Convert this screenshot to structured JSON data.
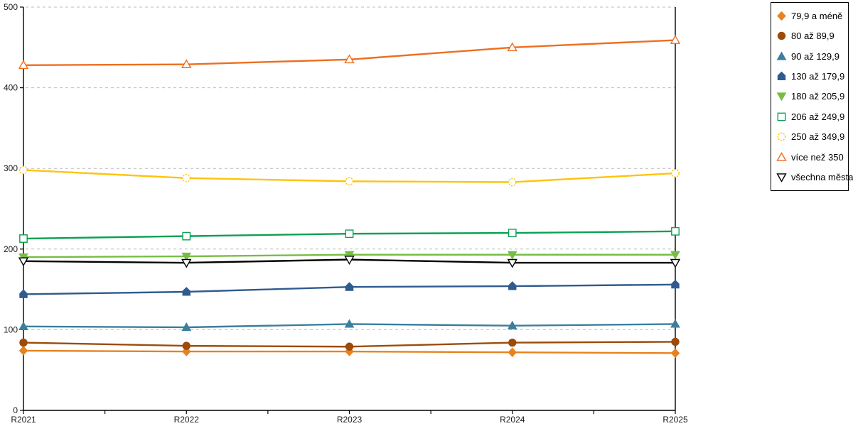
{
  "chart_data": {
    "type": "line",
    "title": "",
    "xlabel": "",
    "ylabel": "",
    "categories": [
      "R2021",
      "R2022",
      "R2023",
      "R2024",
      "R2025"
    ],
    "ylim": [
      0,
      500
    ],
    "yticks": [
      0,
      100,
      200,
      300,
      400,
      500
    ],
    "grid": "horizontal-dashed",
    "legend_position": "top-right-outside",
    "series": [
      {
        "name": "79,9 a méně",
        "marker": "diamond",
        "filled": true,
        "color": "#E8821E",
        "values": [
          74,
          73,
          73,
          72,
          71
        ]
      },
      {
        "name": "80 až 89,9",
        "marker": "circle",
        "filled": true,
        "color": "#9C4B0A",
        "values": [
          84,
          80,
          79,
          84,
          85
        ]
      },
      {
        "name": "90 až 129,9",
        "marker": "triangle-up",
        "filled": true,
        "color": "#3C7E9C",
        "values": [
          104,
          103,
          107,
          105,
          107
        ]
      },
      {
        "name": "130 až 179,9",
        "marker": "pentagon",
        "filled": true,
        "color": "#2F5B8F",
        "values": [
          144,
          147,
          153,
          154,
          156
        ]
      },
      {
        "name": "180 až 205,9",
        "marker": "triangle-down",
        "filled": true,
        "color": "#76BE43",
        "values": [
          190,
          191,
          193,
          193,
          193
        ]
      },
      {
        "name": "206 až 249,9",
        "marker": "square",
        "filled": false,
        "color": "#0AA153",
        "values": [
          213,
          216,
          219,
          220,
          222
        ]
      },
      {
        "name": "250 až 349,9",
        "marker": "circle-dashed",
        "filled": false,
        "color": "#FFC30B",
        "values": [
          298,
          288,
          284,
          283,
          294
        ]
      },
      {
        "name": "více než 350",
        "marker": "triangle-up",
        "filled": false,
        "color": "#ED6E1F",
        "values": [
          428,
          429,
          435,
          450,
          459
        ]
      },
      {
        "name": "všechna města",
        "marker": "triangle-down",
        "filled": false,
        "color": "#000000",
        "values": [
          185,
          183,
          187,
          183,
          183
        ]
      }
    ],
    "colors": {
      "grid": "#bbbbbb",
      "axis": "#000000",
      "background": "#ffffff"
    }
  }
}
